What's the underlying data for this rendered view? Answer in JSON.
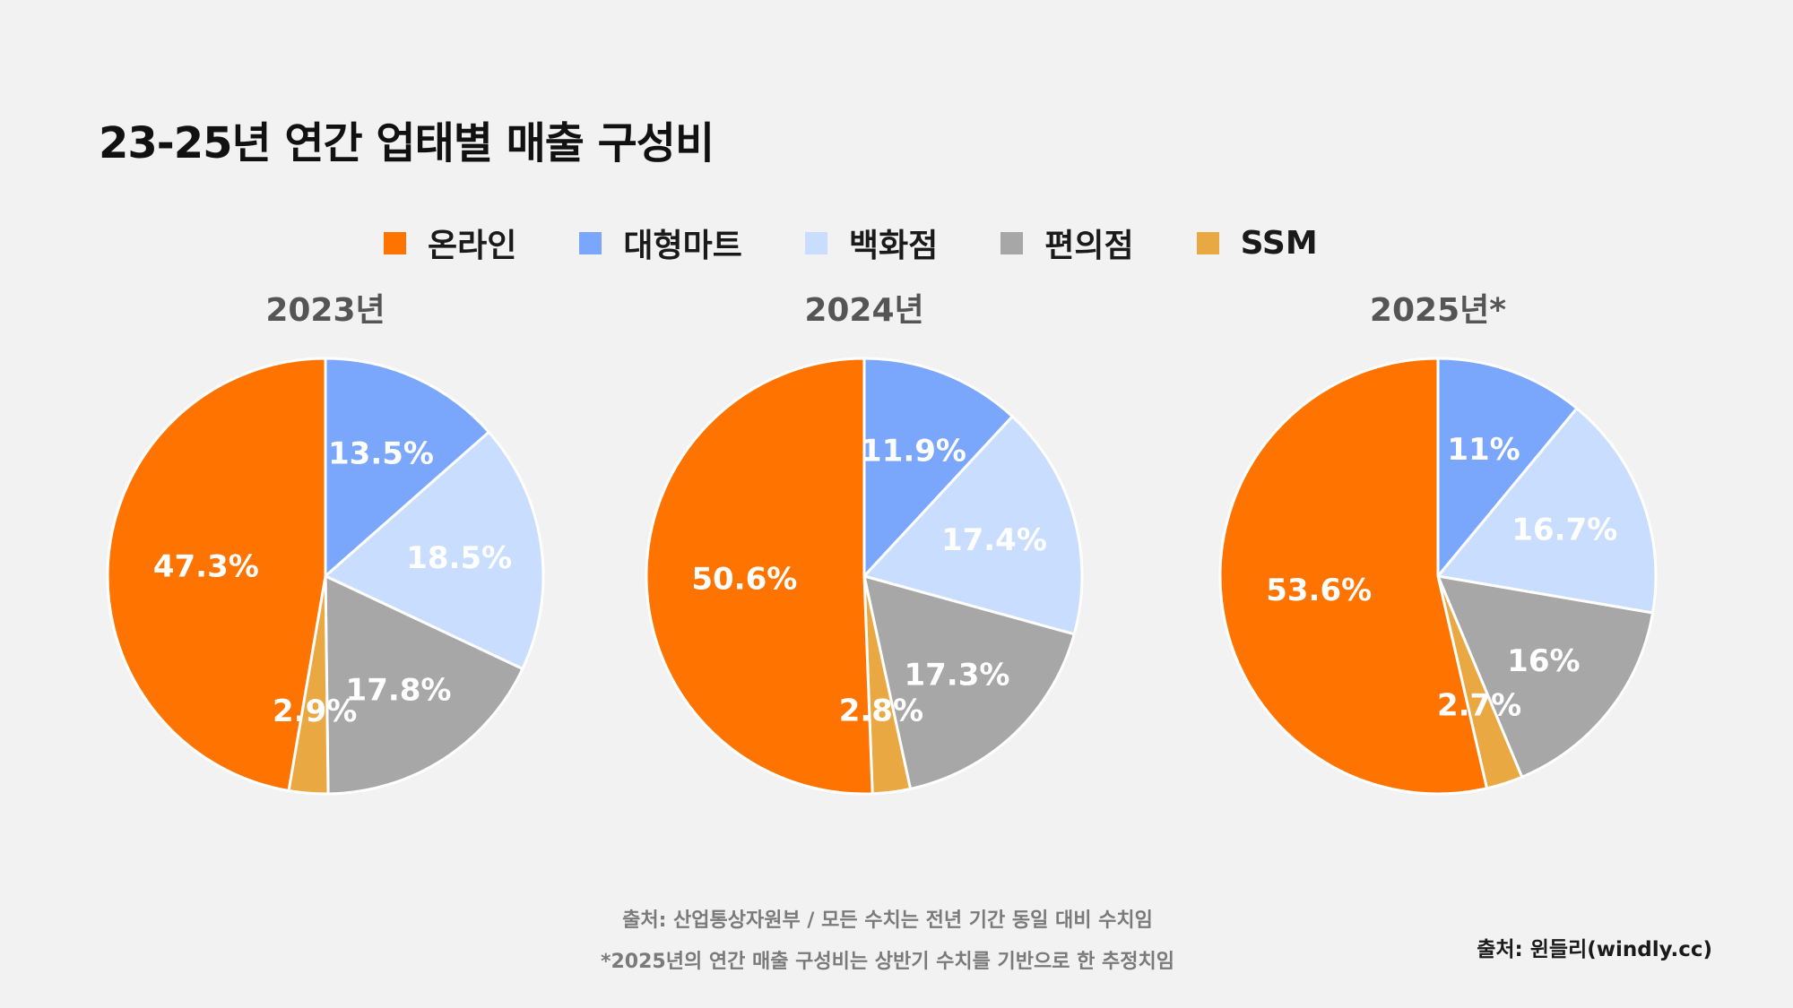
{
  "title": "23-25년 연간 업태별 매출 구성비",
  "legend": [
    {
      "label": "온라인",
      "color": "#ff7300"
    },
    {
      "label": "대형마트",
      "color": "#7aa7fb"
    },
    {
      "label": "백화점",
      "color": "#c9defe"
    },
    {
      "label": "편의점",
      "color": "#a7a7a7"
    },
    {
      "label": "SSM",
      "color": "#e9a842"
    }
  ],
  "chart_data": [
    {
      "type": "pie",
      "title": "2023년",
      "categories": [
        "대형마트",
        "백화점",
        "편의점",
        "SSM",
        "온라인"
      ],
      "values": [
        13.5,
        18.5,
        17.8,
        2.9,
        47.3
      ],
      "labels": [
        "13.5%",
        "18.5%",
        "17.8%",
        "2.9%",
        "47.3%"
      ]
    },
    {
      "type": "pie",
      "title": "2024년",
      "categories": [
        "대형마트",
        "백화점",
        "편의점",
        "SSM",
        "온라인"
      ],
      "values": [
        11.9,
        17.4,
        17.3,
        2.8,
        50.6
      ],
      "labels": [
        "11.9%",
        "17.4%",
        "17.3%",
        "2.8%",
        "50.6%"
      ]
    },
    {
      "type": "pie",
      "title": "2025년*",
      "categories": [
        "대형마트",
        "백화점",
        "편의점",
        "SSM",
        "온라인"
      ],
      "values": [
        11,
        16.7,
        16,
        2.7,
        53.6
      ],
      "labels": [
        "11%",
        "16.7%",
        "16%",
        "2.7%",
        "53.6%"
      ]
    }
  ],
  "footnotes": {
    "source": "출처: 산업통상자원부 / 모든 수치는 전년 기간 동일 대비 수치임",
    "note": "*2025년의 연간 매출 구성비는 상반기 수치를 기반으로 한 추정치임"
  },
  "credit": "출처: 윈들리(windly.cc)"
}
